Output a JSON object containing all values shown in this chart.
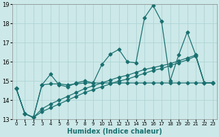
{
  "xlabel": "Humidex (Indice chaleur)",
  "xlim": [
    -0.5,
    23.5
  ],
  "ylim": [
    13,
    19
  ],
  "yticks": [
    13,
    14,
    15,
    16,
    17,
    18,
    19
  ],
  "xticks": [
    0,
    1,
    2,
    3,
    4,
    5,
    6,
    7,
    8,
    9,
    10,
    11,
    12,
    13,
    14,
    15,
    16,
    17,
    18,
    19,
    20,
    21,
    22,
    23
  ],
  "bg_color": "#cce8e8",
  "grid_color": "#aad0d0",
  "line_color": "#1a7070",
  "s1": [
    14.6,
    13.3,
    13.1,
    14.8,
    15.35,
    14.8,
    14.7,
    14.9,
    15.0,
    14.9,
    15.85,
    16.4,
    16.65,
    16.0,
    15.95,
    18.3,
    18.95,
    18.1,
    15.0,
    16.35,
    17.55,
    16.35,
    14.9,
    14.9
  ],
  "s2": [
    14.6,
    13.3,
    13.1,
    14.8,
    14.85,
    14.85,
    14.8,
    14.85,
    14.9,
    14.9,
    14.9,
    14.9,
    14.9,
    14.9,
    14.9,
    14.9,
    14.9,
    14.9,
    14.9,
    14.9,
    14.9,
    14.9,
    14.9,
    14.9
  ],
  "s3": [
    14.6,
    13.3,
    13.1,
    13.4,
    13.6,
    13.8,
    14.0,
    14.2,
    14.4,
    14.55,
    14.7,
    14.85,
    15.0,
    15.1,
    15.25,
    15.4,
    15.55,
    15.65,
    15.8,
    15.95,
    16.1,
    16.3,
    14.9,
    14.9
  ],
  "s4": [
    14.6,
    13.3,
    13.1,
    13.55,
    13.8,
    14.0,
    14.2,
    14.4,
    14.6,
    14.75,
    14.9,
    15.05,
    15.2,
    15.3,
    15.45,
    15.6,
    15.7,
    15.8,
    15.9,
    16.05,
    16.2,
    16.35,
    14.9,
    14.9
  ]
}
